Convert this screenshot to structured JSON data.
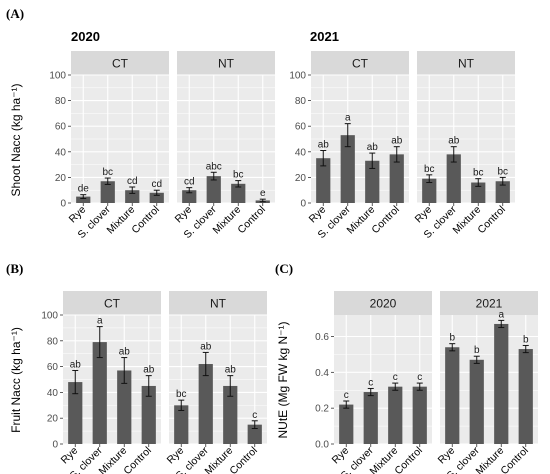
{
  "panel_labels": {
    "A": "(A)",
    "B": "(B)",
    "C": "(C)"
  },
  "colors": {
    "bar": "#595959",
    "strip": "#d9d9d9",
    "panel_bg": "#ebebeb",
    "grid": "#ffffff",
    "axis_text": "#4d4d4d"
  },
  "chart_data": [
    {
      "id": "A",
      "type": "bar",
      "heading": "2020",
      "ylabel": "Shoot Nacc (kg ha⁻¹)",
      "ylim": [
        0,
        100
      ],
      "yticks": [
        0,
        20,
        40,
        60,
        80,
        100
      ],
      "categories": [
        "Rye",
        "S. clover",
        "Mixture",
        "Control"
      ],
      "facets": [
        {
          "label": "CT",
          "values": [
            5,
            17,
            10,
            8
          ],
          "errors": [
            1.5,
            2.5,
            2.5,
            2
          ],
          "letters": [
            "de",
            "bc",
            "cd",
            "cd"
          ]
        },
        {
          "label": "NT",
          "values": [
            10,
            21,
            15,
            2
          ],
          "errors": [
            2,
            3,
            2.5,
            1
          ],
          "letters": [
            "cd",
            "abc",
            "bc",
            "e"
          ]
        }
      ]
    },
    {
      "id": "A",
      "type": "bar",
      "heading": "2021",
      "ylim": [
        0,
        100
      ],
      "yticks": [
        0,
        20,
        40,
        60,
        80,
        100
      ],
      "categories": [
        "Rye",
        "S. clover",
        "Mixture",
        "Control"
      ],
      "facets": [
        {
          "label": "CT",
          "values": [
            35,
            53,
            33,
            38
          ],
          "errors": [
            6,
            9,
            6,
            6
          ],
          "letters": [
            "ab",
            "a",
            "ab",
            "ab"
          ]
        },
        {
          "label": "NT",
          "values": [
            19,
            38,
            16,
            17
          ],
          "errors": [
            3,
            6,
            3,
            3
          ],
          "letters": [
            "bc",
            "ab",
            "bc",
            "bc"
          ]
        }
      ]
    },
    {
      "id": "B",
      "type": "bar",
      "ylabel": "Fruit Nacc (kg ha⁻¹)",
      "ylim": [
        0,
        100
      ],
      "yticks": [
        0,
        20,
        40,
        60,
        80,
        100
      ],
      "categories": [
        "Rye",
        "S. clover",
        "Mixture",
        "Control"
      ],
      "facets": [
        {
          "label": "CT",
          "values": [
            48,
            79,
            57,
            45
          ],
          "errors": [
            9,
            12,
            10,
            8
          ],
          "letters": [
            "ab",
            "a",
            "ab",
            "ab"
          ]
        },
        {
          "label": "NT",
          "values": [
            30,
            62,
            45,
            15
          ],
          "errors": [
            4,
            9,
            8,
            3
          ],
          "letters": [
            "bc",
            "ab",
            "ab",
            "c"
          ]
        }
      ]
    },
    {
      "id": "C",
      "type": "bar",
      "ylabel": "NUtE (Mg FW kg N⁻¹)",
      "ylim": [
        0,
        0.72
      ],
      "yticks": [
        0.0,
        0.2,
        0.4,
        0.6
      ],
      "ytick_labels": [
        "0.0",
        "0.2",
        "0.4",
        "0.6"
      ],
      "categories": [
        "Rye",
        "S. clover",
        "Mixture",
        "Control"
      ],
      "facets": [
        {
          "label": "2020",
          "values": [
            0.22,
            0.29,
            0.32,
            0.32
          ],
          "errors": [
            0.02,
            0.02,
            0.02,
            0.02
          ],
          "letters": [
            "c",
            "c",
            "c",
            "c"
          ]
        },
        {
          "label": "2021",
          "values": [
            0.54,
            0.47,
            0.67,
            0.53
          ],
          "errors": [
            0.02,
            0.02,
            0.02,
            0.02
          ],
          "letters": [
            "b",
            "b",
            "a",
            "b"
          ]
        }
      ]
    }
  ]
}
